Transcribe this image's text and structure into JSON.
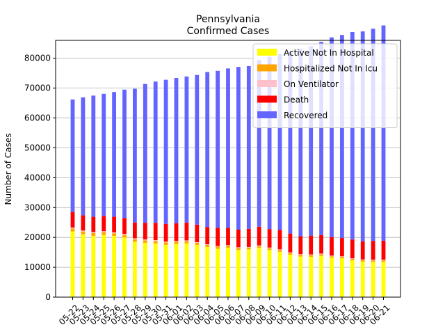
{
  "chart_data": {
    "type": "bar",
    "stacked": true,
    "title": "Pennsylvania",
    "subtitle": "Confirmed Cases",
    "xlabel": "",
    "ylabel": "Number of Cases",
    "ylim": [
      0,
      86000
    ],
    "yticks": [
      0,
      10000,
      20000,
      30000,
      40000,
      50000,
      60000,
      70000,
      80000
    ],
    "grid": "horizontal",
    "legend_position": "top-right",
    "categories": [
      "05-22",
      "05-23",
      "05-24",
      "05-25",
      "05-26",
      "05-27",
      "05-28",
      "05-29",
      "05-30",
      "05-31",
      "06-01",
      "06-02",
      "06-03",
      "06-04",
      "06-05",
      "06-06",
      "06-07",
      "06-08",
      "06-09",
      "06-10",
      "06-11",
      "06-12",
      "06-13",
      "06-14",
      "06-15",
      "06-16",
      "06-17",
      "06-18",
      "06-19",
      "06-20",
      "06-21"
    ],
    "series": [
      {
        "name": "Active Not In Hospital",
        "color": "#ffff00",
        "values": [
          22000,
          21000,
          20500,
          20800,
          20500,
          20000,
          18500,
          18200,
          18000,
          17500,
          17800,
          18000,
          17500,
          16800,
          16200,
          16500,
          15800,
          16000,
          16500,
          15800,
          15200,
          14200,
          13600,
          13500,
          13800,
          13200,
          13000,
          12300,
          11900,
          11800,
          11800
        ]
      },
      {
        "name": "Hospitalized Not In Icu",
        "color": "#ffa500",
        "values": [
          1000,
          1000,
          1000,
          1000,
          900,
          900,
          900,
          800,
          800,
          800,
          800,
          800,
          700,
          700,
          700,
          700,
          700,
          600,
          600,
          600,
          600,
          600,
          600,
          600,
          600,
          500,
          500,
          500,
          500,
          500,
          500
        ]
      },
      {
        "name": "On Ventilator",
        "color": "#ffc0cb",
        "values": [
          300,
          300,
          300,
          300,
          300,
          300,
          300,
          300,
          300,
          300,
          200,
          200,
          200,
          200,
          200,
          200,
          200,
          200,
          200,
          200,
          200,
          200,
          200,
          200,
          200,
          200,
          200,
          200,
          200,
          200,
          200
        ]
      },
      {
        "name": "Death",
        "color": "#ff0000",
        "values": [
          5200,
          5100,
          5100,
          5100,
          5200,
          5300,
          5300,
          5600,
          5800,
          5900,
          5900,
          6000,
          5900,
          5800,
          6100,
          5800,
          5900,
          6100,
          6300,
          6200,
          6500,
          6300,
          6000,
          6300,
          6200,
          6200,
          6100,
          6300,
          6100,
          6300,
          6400
        ]
      },
      {
        "name": "Recovered",
        "color": "#6464ff",
        "values": [
          37700,
          39500,
          40600,
          40900,
          41800,
          43000,
          44800,
          46500,
          47300,
          48300,
          48700,
          48900,
          50100,
          51900,
          52600,
          53400,
          54500,
          54500,
          55800,
          57700,
          58900,
          61000,
          62700,
          63400,
          64700,
          66900,
          68000,
          69500,
          70300,
          71100,
          72100
        ]
      }
    ]
  }
}
